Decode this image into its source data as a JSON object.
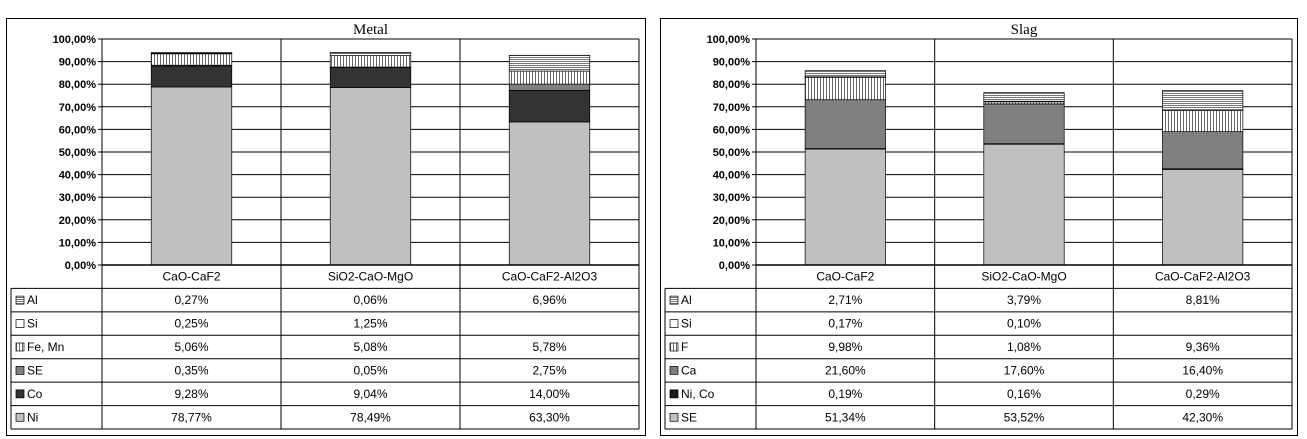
{
  "chart_data": [
    {
      "type": "bar",
      "stacked": true,
      "title": "Metal",
      "categories": [
        "CaO-CaF2",
        "SiO2-CaO-MgO",
        "CaO-CaF2-Al2O3"
      ],
      "y_ticks": [
        "100,00%",
        "90,00%",
        "80,00%",
        "70,00%",
        "60,00%",
        "50,00%",
        "40,00%",
        "30,00%",
        "20,00%",
        "10,00%",
        "0,00%"
      ],
      "ylim": [
        0,
        100
      ],
      "series": [
        {
          "name": "Al",
          "pattern": "hlines",
          "values": [
            0.27,
            0.06,
            6.96
          ],
          "labels": [
            "0,27%",
            "0,06%",
            "6,96%"
          ]
        },
        {
          "name": "Si",
          "pattern": "white",
          "values": [
            0.25,
            1.25,
            null
          ],
          "labels": [
            "0,25%",
            "1,25%",
            ""
          ]
        },
        {
          "name": "Fe, Mn",
          "pattern": "vlines",
          "values": [
            5.06,
            5.08,
            5.78
          ],
          "labels": [
            "5,06%",
            "5,08%",
            "5,78%"
          ]
        },
        {
          "name": "SE",
          "pattern": "#808080",
          "values": [
            0.35,
            0.05,
            2.75
          ],
          "labels": [
            "0,35%",
            "0,05%",
            "2,75%"
          ]
        },
        {
          "name": "Co",
          "pattern": "#333333",
          "values": [
            9.28,
            9.04,
            14.0
          ],
          "labels": [
            "9,28%",
            "9,04%",
            "14,00%"
          ]
        },
        {
          "name": "Ni",
          "pattern": "#c0c0c0",
          "values": [
            78.77,
            78.49,
            63.3
          ],
          "labels": [
            "78,77%",
            "78,49%",
            "63,30%"
          ]
        }
      ],
      "grid": true,
      "legend": "data-table"
    },
    {
      "type": "bar",
      "stacked": true,
      "title": "Slag",
      "categories": [
        "CaO-CaF2",
        "SiO2-CaO-MgO",
        "CaO-CaF2-Al2O3"
      ],
      "y_ticks": [
        "100,00%",
        "90,00%",
        "80,00%",
        "70,00%",
        "60,00%",
        "50,00%",
        "40,00%",
        "30,00%",
        "20,00%",
        "10,00%",
        "0,00%"
      ],
      "ylim": [
        0,
        100
      ],
      "series": [
        {
          "name": "Al",
          "pattern": "hlines",
          "values": [
            2.71,
            3.79,
            8.81
          ],
          "labels": [
            "2,71%",
            "3,79%",
            "8,81%"
          ]
        },
        {
          "name": "Si",
          "pattern": "white",
          "values": [
            0.17,
            0.1,
            null
          ],
          "labels": [
            "0,17%",
            "0,10%",
            ""
          ]
        },
        {
          "name": "F",
          "pattern": "vlines",
          "values": [
            9.98,
            1.08,
            9.36
          ],
          "labels": [
            "9,98%",
            "1,08%",
            "9,36%"
          ]
        },
        {
          "name": "Ca",
          "pattern": "#808080",
          "values": [
            21.6,
            17.6,
            16.4
          ],
          "labels": [
            "21,60%",
            "17,60%",
            "16,40%"
          ]
        },
        {
          "name": "Ni, Co",
          "pattern": "#1a1a1a",
          "values": [
            0.19,
            0.16,
            0.29
          ],
          "labels": [
            "0,19%",
            "0,16%",
            "0,29%"
          ]
        },
        {
          "name": "SE",
          "pattern": "#c0c0c0",
          "values": [
            51.34,
            53.52,
            42.3
          ],
          "labels": [
            "51,34%",
            "53,52%",
            "42,30%"
          ]
        }
      ],
      "grid": true,
      "legend": "data-table"
    }
  ]
}
